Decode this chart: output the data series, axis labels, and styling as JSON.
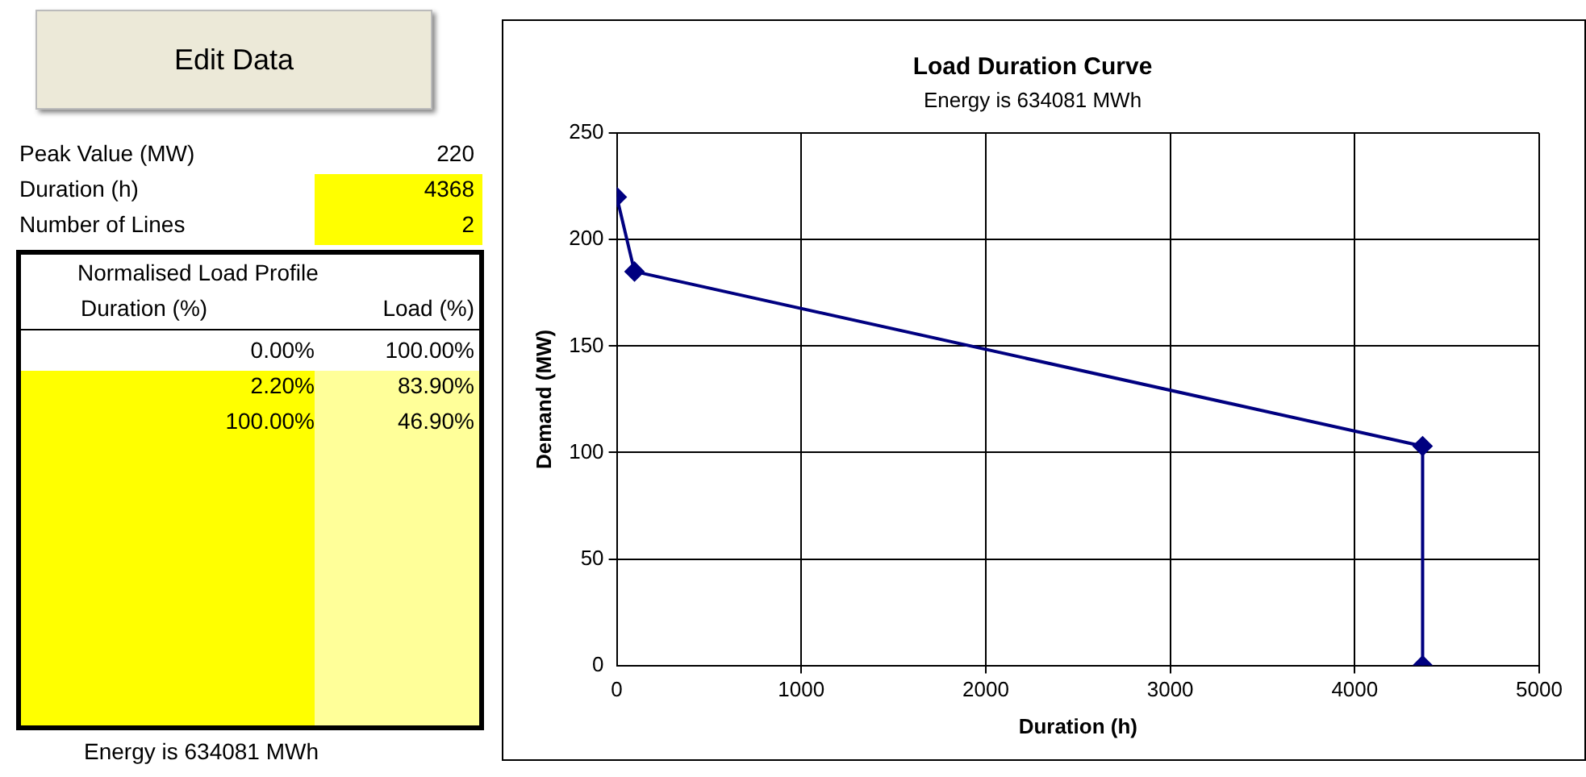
{
  "chart_data": [
    {
      "type": "other",
      "annotations": [
        "Edit Data",
        "Peak Value (MW)",
        "220",
        "Duration (h)",
        "4368",
        "Number of Lines",
        "2",
        "Normalised Load Profile",
        "Duration (%)",
        "Load (%)",
        "0.00%",
        "100.00%",
        "2.20%",
        "83.90%",
        "100.00%",
        "46.90%",
        "Energy is 634081 MWh"
      ]
    },
    {
      "type": "line",
      "title": "Load Duration Curve",
      "subtitle": "Energy is 634081 MWh",
      "xlabel": "Duration (h)",
      "ylabel": "Demand (MW)",
      "series": [
        {
          "color": "#000080",
          "x": [
            0,
            96,
            4368,
            4368
          ],
          "values": [
            220,
            185,
            103,
            0
          ]
        }
      ],
      "xlim": [
        0,
        5000
      ],
      "xticks": [
        0,
        1000,
        2000,
        3000,
        4000,
        5000
      ],
      "ylim": [
        0,
        250
      ],
      "yticks": [
        0,
        50,
        100,
        150,
        200,
        250
      ],
      "grid": true,
      "legend": false,
      "marker": "diamond",
      "line_style": "solid"
    }
  ]
}
